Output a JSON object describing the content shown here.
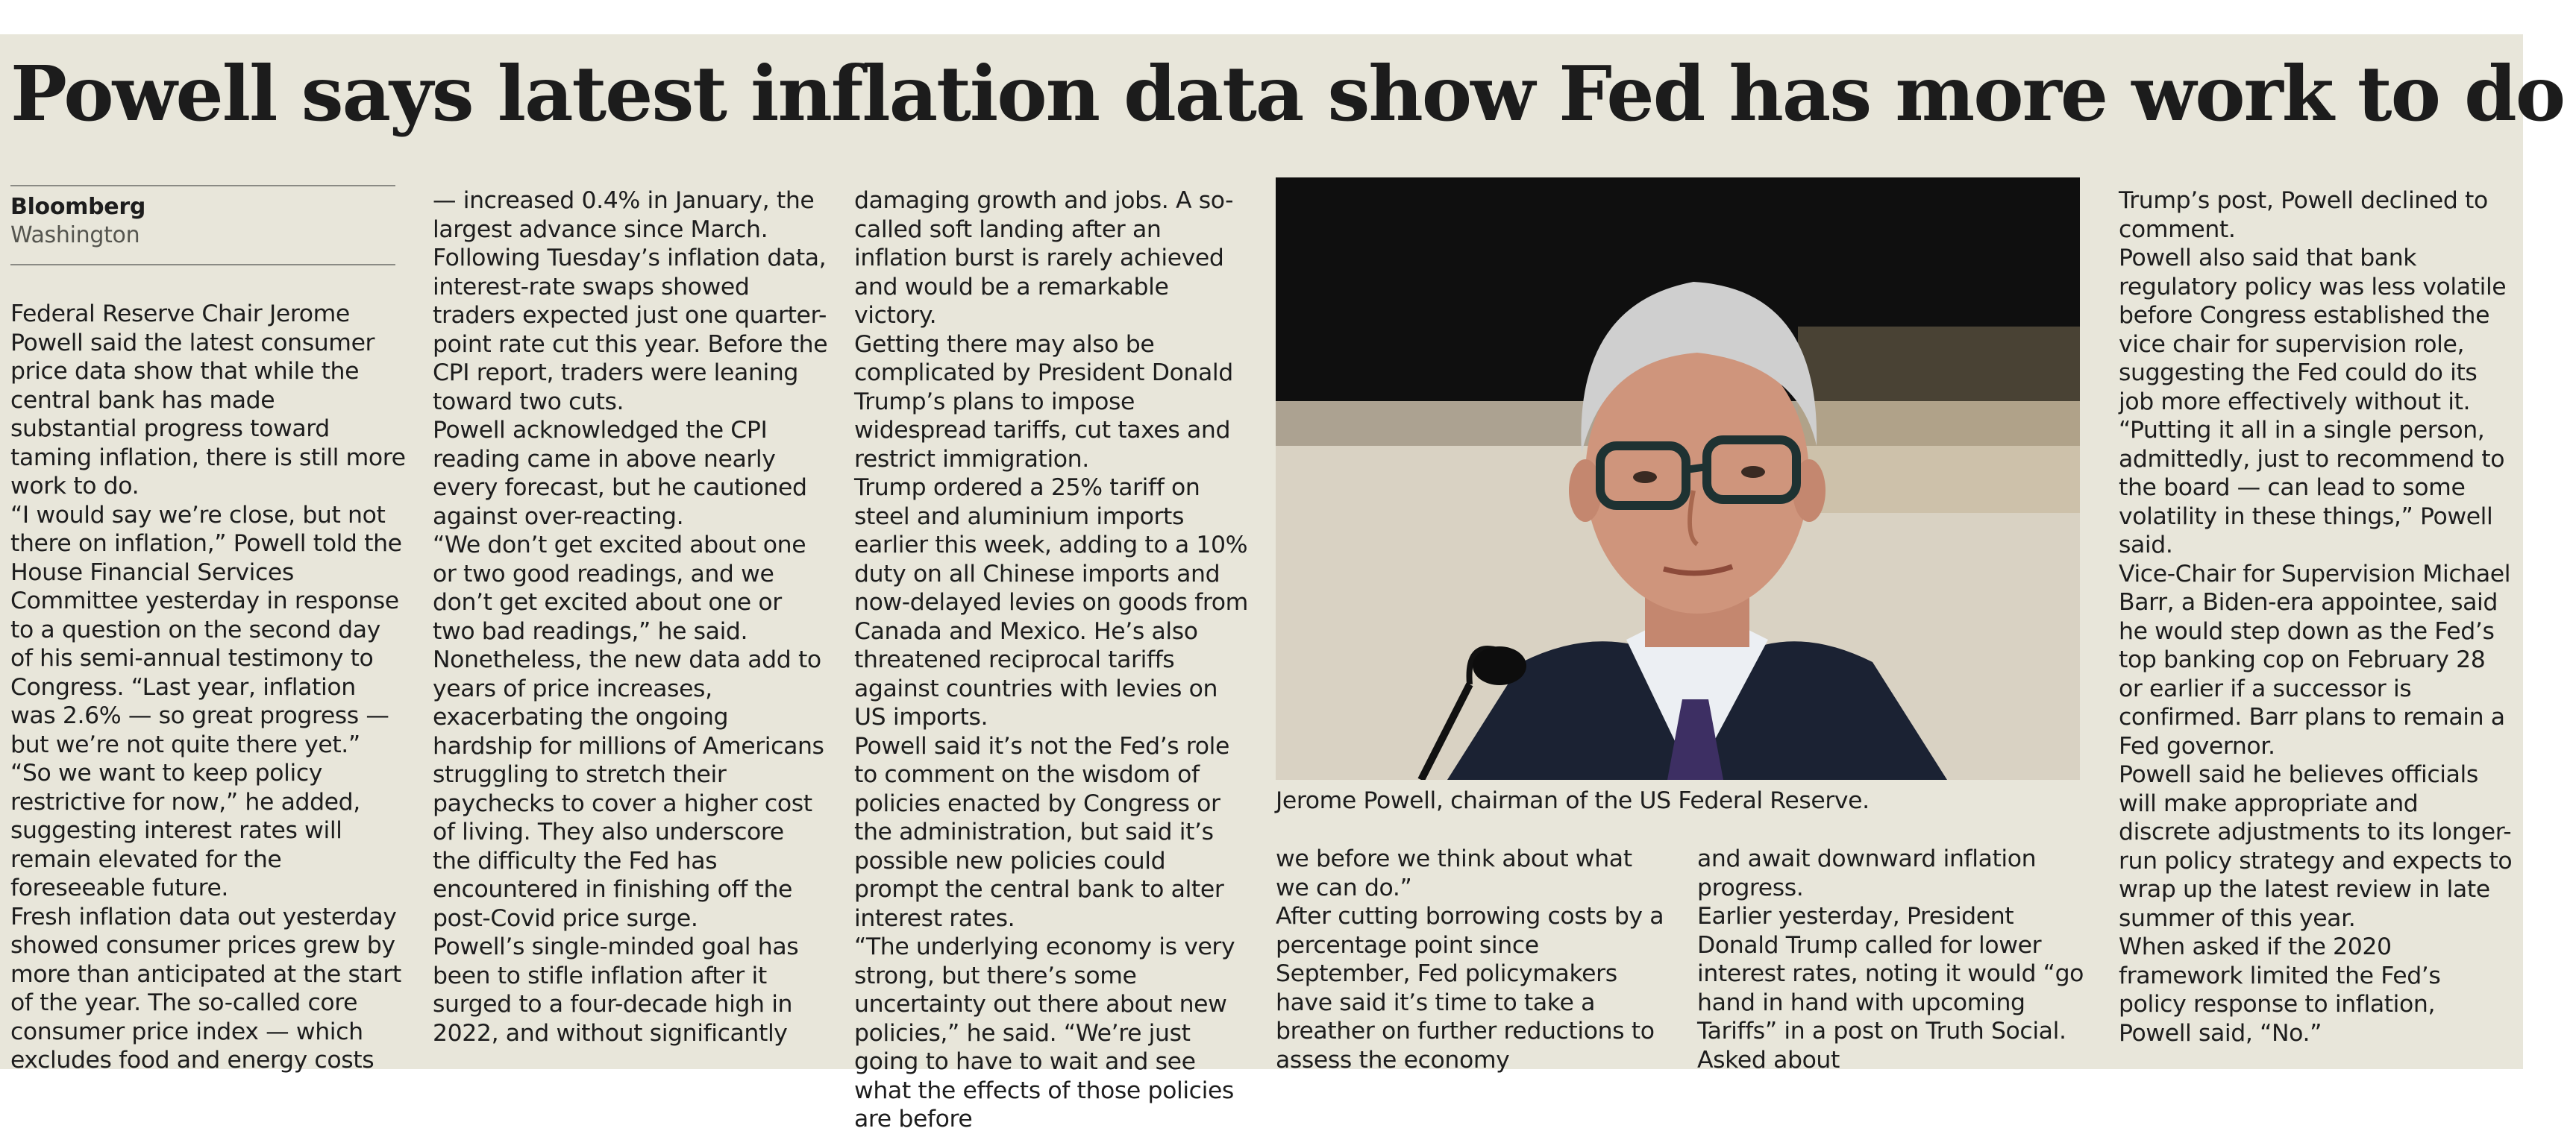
{
  "article": {
    "headline": "Powell says latest inflation data show Fed has more work to do",
    "byline": {
      "organization": "Bloomberg",
      "location": "Washington"
    },
    "photo_caption": "Jerome Powell, chairman of the US Federal Reserve.",
    "columns": [
      [
        "Federal Reserve Chair Jerome Powell said the latest consumer price data show that while the central bank has made substantial progress toward taming inflation, there is still more work to do.",
        "“I would say we’re close, but not there on inflation,” Powell told the House Financial Services Committee yesterday in response to a question on the second day of his semi-annual testimony to Congress. “Last year, inflation was 2.6% — so great progress — but we’re not quite there yet.”",
        "“So we want to keep policy restrictive for now,” he added, suggesting interest rates will remain elevated for the foreseeable future.",
        "Fresh inflation data out yesterday showed consumer prices grew by more than anticipated at the start of the year. The so-called core consumer price index — which excludes food and energy costs"
      ],
      [
        "— increased 0.4% in January, the largest advance since March. Following Tuesday’s inflation data, interest-rate swaps showed traders expected just one quarter-point rate cut this year. Before the CPI report, traders were leaning toward two cuts.",
        "Powell acknowledged the CPI reading came in above nearly every forecast, but he cautioned against over-reacting.",
        "“We don’t get excited about one or two good readings, and we don’t get excited about one or two bad readings,” he said.",
        "Nonetheless, the new data add to years of price increases, exacerbating the ongoing hardship for millions of Americans struggling to stretch their paychecks to cover a higher cost of living. They also underscore the difficulty the Fed has encountered in finishing off the post-Covid price surge.",
        "Powell’s single-minded goal has been to stifle inflation after it surged to a four-decade high in 2022, and without significantly"
      ],
      [
        "damaging growth and jobs. A so-called soft landing after an inflation burst is rarely achieved and would be a remarkable victory.",
        "Getting there may also be complicated by President Donald Trump’s plans to impose widespread tariffs, cut taxes and restrict immigration.",
        "Trump ordered a 25% tariff on steel and aluminium imports earlier this week, adding to a 10% duty on all Chinese imports and now-delayed levies on goods from Canada and Mexico. He’s also threatened reciprocal tariffs against countries with levies on US imports.",
        "Powell said it’s not the Fed’s role to comment on the wisdom of policies enacted by Congress or the administration, but said it’s possible new policies could prompt the central bank to alter interest rates.",
        "“The underlying economy is very strong, but there’s some uncertainty out there about new policies,” he said. “We’re just going to have to wait and see what the effects of those policies are before"
      ],
      [
        "we before we think about what we can do.”",
        "After cutting borrowing costs by a percentage point since September, Fed policymakers have said it’s time to take a breather on further reductions to assess the economy"
      ],
      [
        "and await downward inflation progress.",
        "Earlier yesterday, President Donald Trump called for lower interest rates, noting it would “go hand in hand with upcoming Tariffs” in a post on Truth Social. Asked about"
      ],
      [
        "Trump’s post, Powell declined to comment.",
        "Powell also said that bank regulatory policy was less volatile before Congress established the vice chair for supervision role, suggesting the Fed could do its job more effectively without it.",
        "“Putting it all in a single person, admittedly, just to recommend to the board — can lead to some volatility in these things,” Powell said.",
        "Vice-Chair for Supervision Michael Barr, a Biden-era appointee, said he would step down as the Fed’s top banking cop on February 28 or earlier if a successor is confirmed. Barr plans to remain a Fed governor.",
        "Powell said he believes officials will make appropriate and discrete adjustments to its longer-run policy strategy and expects to wrap up the latest review in late summer of this year.",
        "When asked if the 2020 framework limited the Fed’s policy response to inflation, Powell said, “No.”"
      ]
    ]
  }
}
